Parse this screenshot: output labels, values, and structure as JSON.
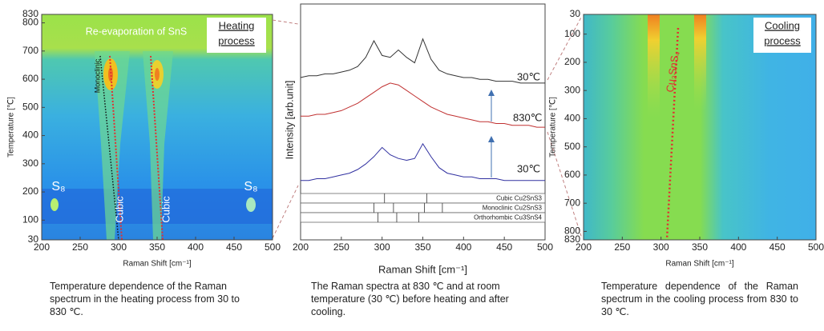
{
  "chart_data": [
    {
      "type": "heatmap",
      "xlabel": "Raman Shift [cm⁻¹]",
      "ylabel": "Temperature [℃]",
      "xlim": [
        200,
        500
      ],
      "xticks": [
        200,
        250,
        300,
        350,
        400,
        450,
        500
      ],
      "ylim": [
        30,
        830
      ],
      "yticks": [
        30,
        100,
        200,
        300,
        400,
        500,
        600,
        700,
        800,
        830
      ],
      "y_reversed": false,
      "box_label": [
        "Heating",
        "process"
      ],
      "annotations": [
        "Re-evaporation of SnS",
        "Monoclinic",
        "Cubic",
        "Cubic",
        "S₈",
        "S₈"
      ],
      "caption": "Temperature dependence of the Raman spectrum in the heating process from 30 to 830 ℃."
    },
    {
      "type": "line",
      "xlabel": "Raman Shift [cm⁻¹]",
      "ylabel": "Intensity [arb.unit]",
      "xlim": [
        200,
        500
      ],
      "xticks": [
        200,
        250,
        300,
        350,
        400,
        450,
        500
      ],
      "ylim": [
        0,
        10
      ],
      "x": [
        200,
        210,
        220,
        230,
        240,
        250,
        260,
        270,
        280,
        290,
        300,
        310,
        320,
        330,
        340,
        350,
        360,
        370,
        380,
        390,
        400,
        410,
        420,
        430,
        440,
        450,
        460,
        470,
        480,
        490,
        500
      ],
      "series": [
        {
          "name": "30℃",
          "color": "#333333",
          "values": [
            6.0,
            6.1,
            6.1,
            6.2,
            6.2,
            6.3,
            6.4,
            6.6,
            7.1,
            8.0,
            7.2,
            7.1,
            7.5,
            7.1,
            6.8,
            8.1,
            7.0,
            6.4,
            6.2,
            6.1,
            6.0,
            6.0,
            5.9,
            5.9,
            5.8,
            5.8,
            5.8,
            5.7,
            5.7,
            5.7,
            5.7
          ]
        },
        {
          "name": "830℃",
          "color": "#c03030",
          "values": [
            3.9,
            3.9,
            4.0,
            4.0,
            4.1,
            4.2,
            4.4,
            4.6,
            4.9,
            5.2,
            5.5,
            5.7,
            5.6,
            5.3,
            5.0,
            4.7,
            4.4,
            4.2,
            4.0,
            3.9,
            3.8,
            3.7,
            3.6,
            3.6,
            3.5,
            3.5,
            3.4,
            3.4,
            3.4,
            3.3,
            3.3
          ]
        },
        {
          "name": "30℃",
          "color": "#3030a0",
          "values": [
            0.4,
            0.4,
            0.5,
            0.5,
            0.6,
            0.7,
            0.8,
            1.0,
            1.3,
            1.7,
            2.2,
            1.8,
            1.6,
            1.5,
            1.6,
            2.4,
            1.7,
            1.1,
            0.8,
            0.7,
            0.6,
            0.6,
            0.5,
            0.5,
            0.5,
            0.4,
            0.4,
            0.4,
            0.4,
            0.4,
            0.4
          ]
        }
      ],
      "references": [
        {
          "name": "Cubic Cu2SnS3",
          "peaks": [
            303,
            355
          ]
        },
        {
          "name": "Monoclinic Cu2SnS3",
          "peaks": [
            290,
            314,
            352,
            374
          ]
        },
        {
          "name": "Orthorhombic Cu3SnS4",
          "peaks": [
            295,
            318,
            345
          ]
        }
      ],
      "caption": "The Raman spectra at 830 ℃ and at room temperature (30 ℃) before heating and after cooling."
    },
    {
      "type": "heatmap",
      "xlabel": "Raman Shift [cm⁻¹]",
      "ylabel": "Temperature [℃]",
      "xlim": [
        200,
        500
      ],
      "xticks": [
        200,
        250,
        300,
        350,
        400,
        450,
        500
      ],
      "ylim": [
        30,
        830
      ],
      "yticks": [
        30,
        100,
        200,
        300,
        400,
        500,
        600,
        700,
        800,
        830
      ],
      "y_reversed": true,
      "box_label": [
        "Cooling",
        "process"
      ],
      "annotations": [
        "Cu₂SnS₄"
      ],
      "caption": "Temperature dependence of the Raman spectrum in the cooling process from 830 to 30 ℃."
    }
  ]
}
